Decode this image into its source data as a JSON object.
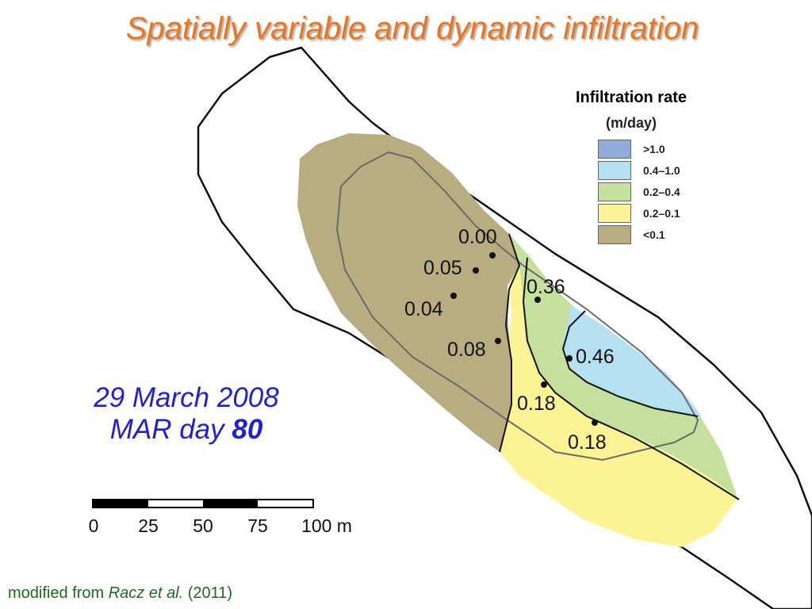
{
  "slide": {
    "title": "Spatially variable and dynamic infiltration"
  },
  "legend": {
    "title": "Infiltration rate",
    "units": "(m/day)",
    "items": [
      {
        "label": ">1.0",
        "color": "#8fadd6"
      },
      {
        "label": "0.4–1.0",
        "color": "#b5e0ef"
      },
      {
        "label": "0.2–0.4",
        "color": "#c5df9d"
      },
      {
        "label": "0.2–0.1",
        "color": "#fbf394"
      },
      {
        "label": "<0.1",
        "color": "#b8ad80"
      }
    ]
  },
  "measurements": [
    {
      "value": "0.00"
    },
    {
      "value": "0.05"
    },
    {
      "value": "0.04"
    },
    {
      "value": "0.08"
    },
    {
      "value": "0.36"
    },
    {
      "value": "0.46"
    },
    {
      "value": "0.18"
    },
    {
      "value": "0.18"
    }
  ],
  "date_info": {
    "date": "29 March 2008",
    "mar_day_label": "MAR day",
    "mar_day_value": "80"
  },
  "scale": {
    "ticks": [
      "0",
      "25",
      "50",
      "75",
      "100 m"
    ],
    "segment_colors": [
      "#000000",
      "#ffffff",
      "#000000",
      "#ffffff"
    ]
  },
  "credit": {
    "prefix": "modified from",
    "authors": "Racz et al.",
    "year": "(2011)"
  },
  "colors": {
    "title": "#e87722",
    "date_text": "#1f1fd6",
    "credit_text": "#1a6b1a",
    "outline": "#111111"
  }
}
